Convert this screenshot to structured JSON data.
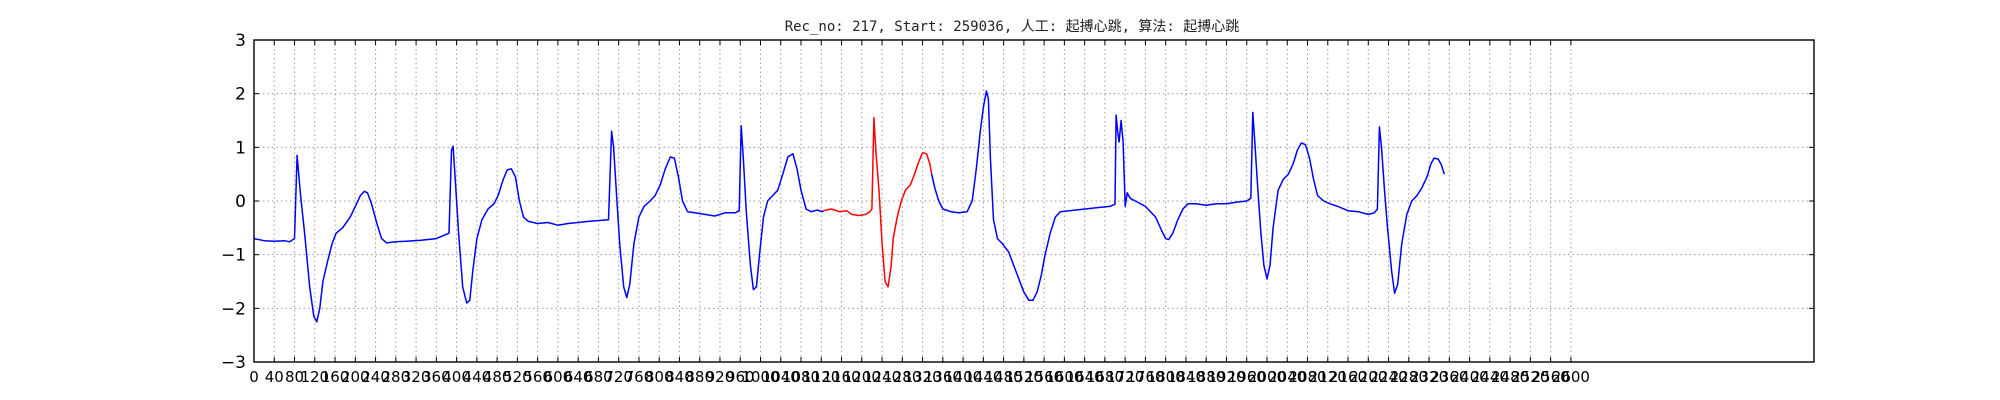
{
  "chart_data": {
    "type": "line",
    "title": "Rec_no: 217, Start: 259036, 人工: 起搏心跳, 算法: 起搏心跳",
    "xlabel": "",
    "ylabel": "",
    "xlim": [
      0,
      3080
    ],
    "ylim": [
      -3,
      3
    ],
    "y_ticks": [
      -3,
      -2,
      -1,
      0,
      1,
      2,
      3
    ],
    "y_tick_labels": [
      "−3",
      "−2",
      "−1",
      "0",
      "1",
      "2",
      "3"
    ],
    "x_ticks": [
      0,
      40,
      80,
      120,
      160,
      200,
      240,
      280,
      320,
      360,
      400,
      440,
      480,
      520,
      560,
      600,
      640,
      680,
      720,
      760,
      800,
      840,
      880,
      920,
      960,
      1000,
      1040,
      1080,
      1120,
      1160,
      1200,
      1240,
      1280,
      1320,
      1360,
      1400,
      1440,
      1480,
      1520,
      1560,
      1600,
      1640,
      1680,
      1720,
      1760,
      1800,
      1840,
      1880,
      1920,
      1960,
      2000,
      2040,
      2080,
      2120,
      2160,
      2200,
      2240,
      2280,
      2320,
      2360,
      2400,
      2440,
      2480,
      2520,
      2560,
      2600
    ],
    "x_tick_labels": [
      "0",
      "40",
      "80",
      "120",
      "160",
      "200",
      "240",
      "280",
      "320",
      "360",
      "400",
      "440",
      "480",
      "520",
      "560",
      "600",
      "640",
      "680",
      "720",
      "760",
      "800",
      "840",
      "880",
      "920",
      "960",
      "1000",
      "1040",
      "1080",
      "1120",
      "1160",
      "1200",
      "1240",
      "1280",
      "1320",
      "1360",
      "1400",
      "1440",
      "1480",
      "1520",
      "1560",
      "1600",
      "1640",
      "1680",
      "1720",
      "1760",
      "1800",
      "1840",
      "1880",
      "1920",
      "1960",
      "2000",
      "2040",
      "2080",
      "2120",
      "2160",
      "2200",
      "2240",
      "2280",
      "2320",
      "2360",
      "2400",
      "2440",
      "2480",
      "2520",
      "2560",
      "2600"
    ],
    "grid": true,
    "grid_style": "dotted",
    "colors": {
      "main": "#0000ff",
      "highlight": "#ff0000",
      "axis": "#000000",
      "grid": "#9a9a9a"
    },
    "series": [
      {
        "color": "#0000ff",
        "points": [
          [
            0,
            -0.7
          ],
          [
            20,
            -0.74
          ],
          [
            40,
            -0.75
          ],
          [
            60,
            -0.74
          ],
          [
            70,
            -0.76
          ],
          [
            80,
            -0.7
          ],
          [
            85,
            0.85
          ],
          [
            92,
            0.1
          ],
          [
            100,
            -0.6
          ],
          [
            110,
            -1.6
          ],
          [
            118,
            -2.15
          ],
          [
            124,
            -2.25
          ],
          [
            130,
            -2.0
          ],
          [
            136,
            -1.5
          ],
          [
            146,
            -1.1
          ],
          [
            154,
            -0.8
          ],
          [
            162,
            -0.6
          ],
          [
            175,
            -0.5
          ],
          [
            190,
            -0.3
          ],
          [
            200,
            -0.1
          ],
          [
            210,
            0.1
          ],
          [
            218,
            0.18
          ],
          [
            224,
            0.15
          ],
          [
            232,
            -0.05
          ],
          [
            242,
            -0.4
          ],
          [
            252,
            -0.7
          ],
          [
            262,
            -0.78
          ],
          [
            280,
            -0.76
          ],
          [
            300,
            -0.75
          ],
          [
            330,
            -0.73
          ],
          [
            360,
            -0.7
          ],
          [
            385,
            -0.6
          ],
          [
            390,
            0.95
          ],
          [
            393,
            1.02
          ],
          [
            398,
            0.3
          ],
          [
            404,
            -0.6
          ],
          [
            412,
            -1.6
          ],
          [
            420,
            -1.9
          ],
          [
            426,
            -1.85
          ],
          [
            432,
            -1.3
          ],
          [
            440,
            -0.7
          ],
          [
            450,
            -0.35
          ],
          [
            462,
            -0.15
          ],
          [
            474,
            -0.05
          ],
          [
            482,
            0.1
          ],
          [
            492,
            0.4
          ],
          [
            500,
            0.58
          ],
          [
            508,
            0.6
          ],
          [
            516,
            0.45
          ],
          [
            524,
            0.0
          ],
          [
            532,
            -0.3
          ],
          [
            542,
            -0.38
          ],
          [
            560,
            -0.42
          ],
          [
            580,
            -0.4
          ],
          [
            600,
            -0.45
          ],
          [
            620,
            -0.42
          ],
          [
            640,
            -0.4
          ],
          [
            660,
            -0.38
          ],
          [
            700,
            -0.35
          ],
          [
            706,
            1.3
          ],
          [
            710,
            1.0
          ],
          [
            716,
            0.1
          ],
          [
            722,
            -0.8
          ],
          [
            730,
            -1.6
          ],
          [
            736,
            -1.8
          ],
          [
            742,
            -1.55
          ],
          [
            750,
            -0.8
          ],
          [
            760,
            -0.3
          ],
          [
            770,
            -0.1
          ],
          [
            782,
            0.0
          ],
          [
            792,
            0.1
          ],
          [
            802,
            0.3
          ],
          [
            812,
            0.6
          ],
          [
            822,
            0.82
          ],
          [
            830,
            0.8
          ],
          [
            838,
            0.45
          ],
          [
            846,
            0.0
          ],
          [
            856,
            -0.2
          ],
          [
            870,
            -0.22
          ],
          [
            890,
            -0.25
          ],
          [
            910,
            -0.28
          ],
          [
            930,
            -0.22
          ],
          [
            950,
            -0.22
          ],
          [
            958,
            -0.18
          ],
          [
            962,
            1.4
          ],
          [
            966,
            0.8
          ],
          [
            972,
            -0.2
          ],
          [
            980,
            -1.2
          ],
          [
            986,
            -1.65
          ],
          [
            992,
            -1.6
          ],
          [
            998,
            -1.0
          ],
          [
            1006,
            -0.3
          ],
          [
            1014,
            0.0
          ],
          [
            1024,
            0.1
          ],
          [
            1034,
            0.2
          ],
          [
            1044,
            0.5
          ],
          [
            1054,
            0.82
          ],
          [
            1064,
            0.88
          ],
          [
            1072,
            0.6
          ],
          [
            1080,
            0.2
          ],
          [
            1090,
            -0.15
          ],
          [
            1100,
            -0.2
          ],
          [
            1112,
            -0.17
          ],
          [
            1122,
            -0.2
          ],
          [
            1124,
            -0.18
          ]
        ]
      },
      {
        "color": "#ff0000",
        "points": [
          [
            1124,
            -0.18
          ],
          [
            1140,
            -0.15
          ],
          [
            1156,
            -0.2
          ],
          [
            1170,
            -0.18
          ],
          [
            1180,
            -0.25
          ],
          [
            1194,
            -0.27
          ],
          [
            1208,
            -0.25
          ],
          [
            1216,
            -0.2
          ],
          [
            1220,
            -0.15
          ],
          [
            1224,
            1.55
          ],
          [
            1228,
            0.9
          ],
          [
            1234,
            0.2
          ],
          [
            1240,
            -0.8
          ],
          [
            1246,
            -1.5
          ],
          [
            1252,
            -1.6
          ],
          [
            1258,
            -1.2
          ],
          [
            1262,
            -0.7
          ],
          [
            1270,
            -0.3
          ],
          [
            1278,
            0.0
          ],
          [
            1286,
            0.2
          ],
          [
            1296,
            0.3
          ],
          [
            1304,
            0.5
          ],
          [
            1312,
            0.72
          ],
          [
            1320,
            0.9
          ],
          [
            1328,
            0.88
          ],
          [
            1334,
            0.7
          ],
          [
            1338,
            0.5
          ]
        ]
      },
      {
        "color": "#0000ff",
        "points": [
          [
            1338,
            0.5
          ],
          [
            1344,
            0.25
          ],
          [
            1352,
            0.0
          ],
          [
            1360,
            -0.15
          ],
          [
            1376,
            -0.2
          ],
          [
            1392,
            -0.22
          ],
          [
            1408,
            -0.2
          ],
          [
            1418,
            0.0
          ],
          [
            1426,
            0.6
          ],
          [
            1434,
            1.3
          ],
          [
            1440,
            1.75
          ],
          [
            1446,
            2.05
          ],
          [
            1450,
            1.9
          ],
          [
            1454,
            0.8
          ],
          [
            1460,
            -0.35
          ],
          [
            1468,
            -0.7
          ],
          [
            1478,
            -0.8
          ],
          [
            1490,
            -0.95
          ],
          [
            1500,
            -1.2
          ],
          [
            1510,
            -1.45
          ],
          [
            1520,
            -1.7
          ],
          [
            1530,
            -1.85
          ],
          [
            1538,
            -1.85
          ],
          [
            1546,
            -1.7
          ],
          [
            1554,
            -1.4
          ],
          [
            1562,
            -1.0
          ],
          [
            1572,
            -0.6
          ],
          [
            1582,
            -0.3
          ],
          [
            1592,
            -0.2
          ],
          [
            1610,
            -0.18
          ],
          [
            1630,
            -0.16
          ],
          [
            1650,
            -0.14
          ],
          [
            1670,
            -0.12
          ],
          [
            1690,
            -0.1
          ],
          [
            1700,
            -0.06
          ],
          [
            1702,
            1.6
          ],
          [
            1705,
            1.3
          ],
          [
            1708,
            1.1
          ],
          [
            1712,
            1.5
          ],
          [
            1716,
            1.1
          ],
          [
            1720,
            -0.1
          ],
          [
            1724,
            0.15
          ],
          [
            1730,
            0.05
          ],
          [
            1740,
            0.0
          ],
          [
            1760,
            -0.1
          ],
          [
            1780,
            -0.3
          ],
          [
            1792,
            -0.55
          ],
          [
            1800,
            -0.7
          ],
          [
            1806,
            -0.72
          ],
          [
            1814,
            -0.6
          ],
          [
            1824,
            -0.35
          ],
          [
            1834,
            -0.15
          ],
          [
            1844,
            -0.05
          ],
          [
            1860,
            -0.05
          ],
          [
            1880,
            -0.08
          ],
          [
            1900,
            -0.05
          ],
          [
            1920,
            -0.05
          ],
          [
            1940,
            -0.02
          ],
          [
            1960,
            0.0
          ],
          [
            1968,
            0.05
          ],
          [
            1972,
            1.65
          ],
          [
            1976,
            1.1
          ],
          [
            1982,
            0.2
          ],
          [
            1988,
            -0.6
          ],
          [
            1994,
            -1.2
          ],
          [
            2000,
            -1.45
          ],
          [
            2006,
            -1.2
          ],
          [
            2012,
            -0.5
          ],
          [
            2022,
            0.2
          ],
          [
            2032,
            0.4
          ],
          [
            2042,
            0.5
          ],
          [
            2052,
            0.7
          ],
          [
            2060,
            0.95
          ],
          [
            2068,
            1.08
          ],
          [
            2076,
            1.05
          ],
          [
            2084,
            0.8
          ],
          [
            2092,
            0.4
          ],
          [
            2100,
            0.1
          ],
          [
            2112,
            0.0
          ],
          [
            2124,
            -0.05
          ],
          [
            2140,
            -0.1
          ],
          [
            2160,
            -0.18
          ],
          [
            2180,
            -0.2
          ],
          [
            2200,
            -0.25
          ],
          [
            2212,
            -0.22
          ],
          [
            2218,
            -0.15
          ],
          [
            2222,
            1.38
          ],
          [
            2226,
            1.0
          ],
          [
            2232,
            0.2
          ],
          [
            2238,
            -0.5
          ],
          [
            2246,
            -1.3
          ],
          [
            2252,
            -1.72
          ],
          [
            2258,
            -1.55
          ],
          [
            2266,
            -0.8
          ],
          [
            2276,
            -0.25
          ],
          [
            2286,
            0.0
          ],
          [
            2296,
            0.1
          ],
          [
            2306,
            0.25
          ],
          [
            2316,
            0.45
          ],
          [
            2324,
            0.7
          ],
          [
            2330,
            0.8
          ],
          [
            2338,
            0.78
          ],
          [
            2344,
            0.68
          ],
          [
            2350,
            0.5
          ]
        ]
      }
    ]
  }
}
